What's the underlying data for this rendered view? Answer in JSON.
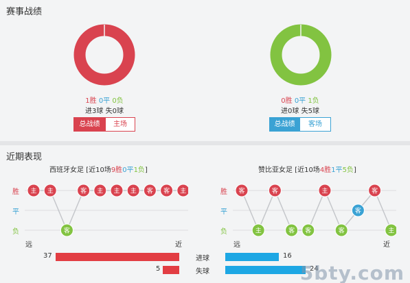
{
  "section1_title": "赛事战绩",
  "section2_title": "近期表现",
  "colors": {
    "win": "#d9434f",
    "draw": "#3aa2d4",
    "loss": "#82c341"
  },
  "left_record": {
    "wins": "1胜",
    "draws": "0平",
    "losses": "0负",
    "goals": "进3球  失0球",
    "tab_total": "总战绩",
    "tab_venue": "主场"
  },
  "right_record": {
    "wins": "0胜",
    "draws": "0平",
    "losses": "1负",
    "goals": "进0球  失5球",
    "tab_total": "总战绩",
    "tab_venue": "客场"
  },
  "axis": {
    "win": "胜",
    "draw": "平",
    "loss": "负",
    "far": "远",
    "near": "近"
  },
  "left_team": {
    "name": "西班牙女足",
    "summary_pre": " [近10场",
    "wins": "9胜",
    "draws": "0平",
    "losses": "1负",
    "summary_post": "]",
    "games": [
      {
        "result": "W",
        "venue": "主"
      },
      {
        "result": "W",
        "venue": "主"
      },
      {
        "result": "L",
        "venue": "客"
      },
      {
        "result": "W",
        "venue": "客"
      },
      {
        "result": "W",
        "venue": "主"
      },
      {
        "result": "W",
        "venue": "主"
      },
      {
        "result": "W",
        "venue": "主"
      },
      {
        "result": "W",
        "venue": "客"
      },
      {
        "result": "W",
        "venue": "客"
      },
      {
        "result": "W",
        "venue": "主"
      }
    ]
  },
  "right_team": {
    "name": "赞比亚女足",
    "summary_pre": " [近10场",
    "wins": "4胜",
    "draws": "1平",
    "losses": "5负",
    "summary_post": "]",
    "games": [
      {
        "result": "W",
        "venue": "客"
      },
      {
        "result": "L",
        "venue": "主"
      },
      {
        "result": "W",
        "venue": "客"
      },
      {
        "result": "L",
        "venue": "客"
      },
      {
        "result": "L",
        "venue": "客"
      },
      {
        "result": "W",
        "venue": "主"
      },
      {
        "result": "L",
        "venue": "客"
      },
      {
        "result": "D",
        "venue": "客"
      },
      {
        "result": "W",
        "venue": "客"
      },
      {
        "result": "L",
        "venue": "主"
      }
    ]
  },
  "goals_bars": {
    "scored_label": "进球",
    "conceded_label": "失球",
    "left_scored": 37,
    "left_conceded": 5,
    "right_scored": 16,
    "right_conceded": 24
  },
  "watermark": "5bty.com"
}
